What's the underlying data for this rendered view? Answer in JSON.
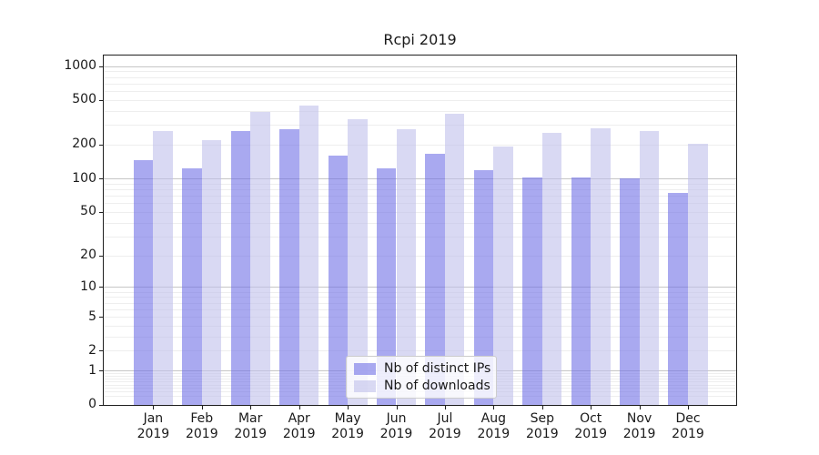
{
  "chart_data": {
    "type": "bar",
    "title": "Rcpi 2019",
    "categories": [
      "Jan",
      "Feb",
      "Mar",
      "Apr",
      "May",
      "Jun",
      "Jul",
      "Aug",
      "Sep",
      "Oct",
      "Nov",
      "Dec"
    ],
    "category_year": "2019",
    "series": [
      {
        "name": "Nb of distinct IPs",
        "color": "rgba(112,112,230,0.6)",
        "values": [
          145,
          124,
          265,
          274,
          161,
          124,
          166,
          119,
          102,
          102,
          101,
          74
        ]
      },
      {
        "name": "Nb of downloads",
        "color": "rgba(192,192,235,0.6)",
        "values": [
          266,
          220,
          390,
          444,
          334,
          277,
          374,
          194,
          256,
          282,
          267,
          204
        ]
      }
    ],
    "yscale": "log1p",
    "yticks": [
      0,
      1,
      2,
      5,
      10,
      20,
      50,
      100,
      200,
      500,
      1000
    ],
    "ylim": [
      0,
      1250
    ],
    "grid": true,
    "legend_position": "lower center",
    "colors": {
      "major_grid": "#c6c6c6",
      "minor_grid": "#eeeeee",
      "spine": "#1f1f1f",
      "text": "#1a1a1a"
    }
  }
}
